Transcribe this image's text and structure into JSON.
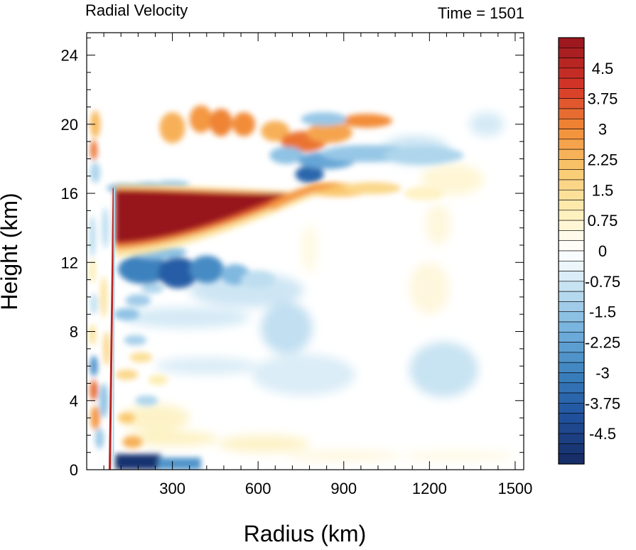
{
  "chart_data": {
    "type": "heatmap",
    "title_left": "Radial Velocity",
    "title_right": "Time = 1501",
    "xlabel": "Radius (km)",
    "ylabel": "Height (km)",
    "xlim": [
      0,
      1530
    ],
    "ylim": [
      0,
      25.3
    ],
    "x_ticks": [
      300,
      600,
      900,
      1200,
      1500
    ],
    "y_ticks": [
      0,
      4,
      8,
      12,
      16,
      20,
      24
    ],
    "colorbar": {
      "min": -5.25,
      "max": 5.25,
      "step": 0.25,
      "labels": [
        "4.5",
        "3.75",
        "3",
        "2.25",
        "1.5",
        "0.75",
        "0",
        "-0.75",
        "-1.5",
        "-2.25",
        "-3",
        "-3.75",
        "-4.5"
      ],
      "label_values": [
        4.5,
        3.75,
        3,
        2.25,
        1.5,
        0.75,
        0,
        -0.75,
        -1.5,
        -2.25,
        -3,
        -3.75,
        -4.5
      ]
    },
    "features": [
      {
        "kind": "outflow_jet",
        "r_start": 100,
        "r_end": 760,
        "z_center": 14.5,
        "depth_inner": 3.5,
        "peak": 5.5
      },
      {
        "kind": "inflow_band",
        "r_start": 100,
        "r_end": 560,
        "z_center": 11.6,
        "depth": 1.6,
        "peak": -4.0
      },
      {
        "kind": "surface_inflow",
        "r_start": 100,
        "r_end": 400,
        "z_center": 0.3,
        "depth": 0.8,
        "peak": -5.0
      },
      {
        "kind": "upper_outflow",
        "r_start": 380,
        "r_end": 1050,
        "z_center": 20.0,
        "peak": 3.0
      },
      {
        "kind": "upper_inflow",
        "r_start": 700,
        "r_end": 1400,
        "z_center": 18.0,
        "peak": -1.8
      },
      {
        "kind": "eyewall",
        "r": 95,
        "z_top": 16.3
      }
    ]
  }
}
